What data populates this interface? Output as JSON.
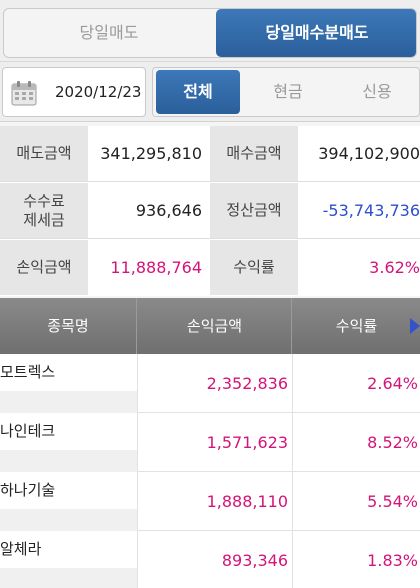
{
  "top_tabs": {
    "today_sell": "당일매도",
    "today_buy_sell": "당일매수분매도"
  },
  "filter": {
    "date": "2020/12/23",
    "all": "전체",
    "cash": "현금",
    "credit": "신용"
  },
  "summary": {
    "sell_amount_label": "매도금액",
    "sell_amount": "341,295,810",
    "buy_amount_label": "매수금액",
    "buy_amount": "394,102,900",
    "fee_tax_label_1": "수수료",
    "fee_tax_label_2": "제세금",
    "fee_tax": "936,646",
    "settlement_label": "정산금액",
    "settlement": "-53,743,736",
    "pnl_label": "손익금액",
    "pnl": "11,888,764",
    "return_label": "수익률",
    "return": "3.62%"
  },
  "table": {
    "headers": {
      "name": "종목명",
      "pnl": "손익금액",
      "rate": "수익률"
    },
    "rows": [
      {
        "name": "모트렉스",
        "pnl": "2,352,836",
        "rate": "2.64%"
      },
      {
        "name": "나인테크",
        "pnl": "1,571,623",
        "rate": "8.52%"
      },
      {
        "name": "하나기술",
        "pnl": "1,888,110",
        "rate": "5.54%"
      },
      {
        "name": "알체라",
        "pnl": "893,346",
        "rate": "1.83%"
      }
    ]
  },
  "colors": {
    "accent": "#2f68a8",
    "positive": "#d4147a",
    "negative": "#2b4fd0"
  }
}
